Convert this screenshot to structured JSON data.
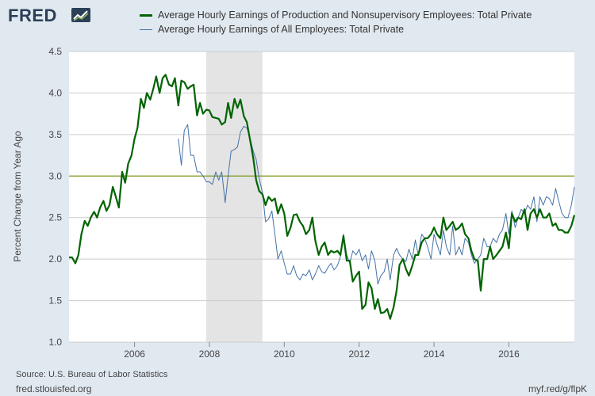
{
  "brand": {
    "logo_text": "FRED",
    "logo_icon": "line-graph-icon"
  },
  "colors": {
    "series1": "#006400",
    "series2": "#4572a7",
    "refline": "#7a9a1a",
    "recession": "#e4e4e4"
  },
  "chart_data": {
    "type": "line",
    "ylabel": "Percent Change from Year Ago",
    "xlabel": "",
    "ylim": [
      1.0,
      4.5
    ],
    "yticks": [
      "1.0",
      "1.5",
      "2.0",
      "2.5",
      "3.0",
      "3.5",
      "4.0",
      "4.5"
    ],
    "xlim": [
      2004.25,
      2017.75
    ],
    "xticks": [
      "2006",
      "2008",
      "2010",
      "2012",
      "2014",
      "2016"
    ],
    "grid": true,
    "legend_position": "top",
    "reference_line": 3.0,
    "recession": [
      "2007-12",
      "2009-06"
    ],
    "series": [
      {
        "name": "Average Hourly Earnings of Production and Nonsupervisory Employees: Total Private",
        "points": [
          [
            2004.25,
            2.02
          ],
          [
            2004.33,
            2.02
          ],
          [
            2004.42,
            1.95
          ],
          [
            2004.5,
            2.05
          ],
          [
            2004.58,
            2.3
          ],
          [
            2004.67,
            2.46
          ],
          [
            2004.75,
            2.4
          ],
          [
            2004.83,
            2.5
          ],
          [
            2004.92,
            2.57
          ],
          [
            2005.0,
            2.5
          ],
          [
            2005.08,
            2.62
          ],
          [
            2005.17,
            2.7
          ],
          [
            2005.25,
            2.58
          ],
          [
            2005.33,
            2.65
          ],
          [
            2005.42,
            2.87
          ],
          [
            2005.5,
            2.75
          ],
          [
            2005.58,
            2.62
          ],
          [
            2005.67,
            3.05
          ],
          [
            2005.75,
            2.92
          ],
          [
            2005.83,
            3.15
          ],
          [
            2005.92,
            3.25
          ],
          [
            2006.0,
            3.45
          ],
          [
            2006.08,
            3.58
          ],
          [
            2006.17,
            3.93
          ],
          [
            2006.25,
            3.82
          ],
          [
            2006.33,
            4.0
          ],
          [
            2006.42,
            3.92
          ],
          [
            2006.5,
            4.05
          ],
          [
            2006.58,
            4.2
          ],
          [
            2006.67,
            4.0
          ],
          [
            2006.75,
            4.18
          ],
          [
            2006.83,
            4.22
          ],
          [
            2006.92,
            4.1
          ],
          [
            2007.0,
            4.08
          ],
          [
            2007.08,
            4.18
          ],
          [
            2007.17,
            3.85
          ],
          [
            2007.25,
            4.15
          ],
          [
            2007.33,
            4.13
          ],
          [
            2007.42,
            4.05
          ],
          [
            2007.5,
            4.08
          ],
          [
            2007.58,
            4.1
          ],
          [
            2007.67,
            3.73
          ],
          [
            2007.75,
            3.88
          ],
          [
            2007.83,
            3.75
          ],
          [
            2007.92,
            3.8
          ],
          [
            2008.0,
            3.79
          ],
          [
            2008.08,
            3.71
          ],
          [
            2008.17,
            3.7
          ],
          [
            2008.25,
            3.69
          ],
          [
            2008.33,
            3.62
          ],
          [
            2008.42,
            3.65
          ],
          [
            2008.5,
            3.88
          ],
          [
            2008.58,
            3.7
          ],
          [
            2008.67,
            3.93
          ],
          [
            2008.75,
            3.82
          ],
          [
            2008.83,
            3.92
          ],
          [
            2008.92,
            3.72
          ],
          [
            2009.0,
            3.65
          ],
          [
            2009.08,
            3.45
          ],
          [
            2009.17,
            3.22
          ],
          [
            2009.25,
            2.95
          ],
          [
            2009.33,
            2.82
          ],
          [
            2009.42,
            2.78
          ],
          [
            2009.5,
            2.65
          ],
          [
            2009.58,
            2.75
          ],
          [
            2009.67,
            2.7
          ],
          [
            2009.75,
            2.73
          ],
          [
            2009.83,
            2.55
          ],
          [
            2009.92,
            2.66
          ],
          [
            2010.0,
            2.55
          ],
          [
            2010.08,
            2.28
          ],
          [
            2010.17,
            2.38
          ],
          [
            2010.25,
            2.53
          ],
          [
            2010.33,
            2.54
          ],
          [
            2010.42,
            2.45
          ],
          [
            2010.5,
            2.4
          ],
          [
            2010.58,
            2.3
          ],
          [
            2010.67,
            2.35
          ],
          [
            2010.75,
            2.5
          ],
          [
            2010.83,
            2.22
          ],
          [
            2010.92,
            2.05
          ],
          [
            2011.0,
            2.15
          ],
          [
            2011.08,
            2.2
          ],
          [
            2011.17,
            2.05
          ],
          [
            2011.25,
            2.1
          ],
          [
            2011.33,
            2.08
          ],
          [
            2011.42,
            2.1
          ],
          [
            2011.5,
            2.05
          ],
          [
            2011.58,
            2.28
          ],
          [
            2011.67,
            1.98
          ],
          [
            2011.75,
            1.98
          ],
          [
            2011.83,
            1.73
          ],
          [
            2011.92,
            1.8
          ],
          [
            2012.0,
            1.85
          ],
          [
            2012.08,
            1.4
          ],
          [
            2012.17,
            1.45
          ],
          [
            2012.25,
            1.72
          ],
          [
            2012.33,
            1.65
          ],
          [
            2012.42,
            1.4
          ],
          [
            2012.5,
            1.52
          ],
          [
            2012.58,
            1.35
          ],
          [
            2012.67,
            1.36
          ],
          [
            2012.75,
            1.4
          ],
          [
            2012.83,
            1.28
          ],
          [
            2012.92,
            1.42
          ],
          [
            2013.0,
            1.62
          ],
          [
            2013.08,
            1.93
          ],
          [
            2013.17,
            2.0
          ],
          [
            2013.25,
            1.88
          ],
          [
            2013.33,
            1.8
          ],
          [
            2013.42,
            1.92
          ],
          [
            2013.5,
            2.05
          ],
          [
            2013.58,
            2.05
          ],
          [
            2013.67,
            2.2
          ],
          [
            2013.75,
            2.25
          ],
          [
            2013.83,
            2.25
          ],
          [
            2013.92,
            2.3
          ],
          [
            2014.0,
            2.38
          ],
          [
            2014.08,
            2.3
          ],
          [
            2014.17,
            2.25
          ],
          [
            2014.25,
            2.5
          ],
          [
            2014.33,
            2.35
          ],
          [
            2014.42,
            2.4
          ],
          [
            2014.5,
            2.45
          ],
          [
            2014.58,
            2.35
          ],
          [
            2014.67,
            2.38
          ],
          [
            2014.75,
            2.43
          ],
          [
            2014.83,
            2.3
          ],
          [
            2014.92,
            2.25
          ],
          [
            2015.0,
            2.1
          ],
          [
            2015.08,
            2.0
          ],
          [
            2015.17,
            1.98
          ],
          [
            2015.25,
            1.62
          ],
          [
            2015.33,
            2.0
          ],
          [
            2015.42,
            2.0
          ],
          [
            2015.5,
            2.15
          ],
          [
            2015.58,
            2.0
          ],
          [
            2015.67,
            2.05
          ],
          [
            2015.75,
            2.1
          ],
          [
            2015.83,
            2.15
          ],
          [
            2015.92,
            2.32
          ],
          [
            2016.0,
            2.13
          ],
          [
            2016.08,
            2.55
          ],
          [
            2016.17,
            2.45
          ],
          [
            2016.25,
            2.5
          ],
          [
            2016.33,
            2.48
          ],
          [
            2016.42,
            2.6
          ],
          [
            2016.5,
            2.35
          ],
          [
            2016.58,
            2.55
          ],
          [
            2016.67,
            2.6
          ],
          [
            2016.75,
            2.5
          ],
          [
            2016.83,
            2.6
          ],
          [
            2016.92,
            2.5
          ],
          [
            2017.0,
            2.5
          ],
          [
            2017.08,
            2.55
          ],
          [
            2017.17,
            2.4
          ],
          [
            2017.25,
            2.43
          ],
          [
            2017.33,
            2.35
          ],
          [
            2017.42,
            2.35
          ],
          [
            2017.5,
            2.32
          ],
          [
            2017.58,
            2.32
          ],
          [
            2017.67,
            2.4
          ],
          [
            2017.75,
            2.53
          ]
        ]
      },
      {
        "name": "Average Hourly Earnings of All Employees: Total Private",
        "points": [
          [
            2007.17,
            3.45
          ],
          [
            2007.25,
            3.13
          ],
          [
            2007.33,
            3.55
          ],
          [
            2007.42,
            3.62
          ],
          [
            2007.5,
            3.25
          ],
          [
            2007.58,
            3.25
          ],
          [
            2007.67,
            3.05
          ],
          [
            2007.75,
            3.05
          ],
          [
            2007.83,
            3.0
          ],
          [
            2007.92,
            2.93
          ],
          [
            2008.0,
            2.93
          ],
          [
            2008.08,
            2.9
          ],
          [
            2008.17,
            3.05
          ],
          [
            2008.25,
            2.95
          ],
          [
            2008.33,
            3.05
          ],
          [
            2008.42,
            2.68
          ],
          [
            2008.5,
            3.0
          ],
          [
            2008.58,
            3.3
          ],
          [
            2008.67,
            3.32
          ],
          [
            2008.75,
            3.35
          ],
          [
            2008.83,
            3.53
          ],
          [
            2008.92,
            3.6
          ],
          [
            2009.0,
            3.58
          ],
          [
            2009.08,
            3.47
          ],
          [
            2009.17,
            3.3
          ],
          [
            2009.25,
            3.2
          ],
          [
            2009.33,
            2.97
          ],
          [
            2009.42,
            2.8
          ],
          [
            2009.5,
            2.45
          ],
          [
            2009.58,
            2.48
          ],
          [
            2009.67,
            2.58
          ],
          [
            2009.75,
            2.3
          ],
          [
            2009.83,
            2.0
          ],
          [
            2009.92,
            2.1
          ],
          [
            2010.0,
            1.95
          ],
          [
            2010.08,
            1.82
          ],
          [
            2010.17,
            1.82
          ],
          [
            2010.25,
            1.92
          ],
          [
            2010.33,
            1.8
          ],
          [
            2010.42,
            1.75
          ],
          [
            2010.5,
            1.82
          ],
          [
            2010.58,
            1.8
          ],
          [
            2010.67,
            1.87
          ],
          [
            2010.75,
            1.75
          ],
          [
            2010.83,
            1.82
          ],
          [
            2010.92,
            1.92
          ],
          [
            2011.0,
            1.85
          ],
          [
            2011.08,
            1.83
          ],
          [
            2011.17,
            1.9
          ],
          [
            2011.25,
            1.95
          ],
          [
            2011.33,
            1.87
          ],
          [
            2011.42,
            1.92
          ],
          [
            2011.5,
            2.03
          ],
          [
            2011.58,
            2.3
          ],
          [
            2011.67,
            2.05
          ],
          [
            2011.75,
            1.95
          ],
          [
            2011.83,
            2.1
          ],
          [
            2011.92,
            2.05
          ],
          [
            2012.0,
            2.12
          ],
          [
            2012.08,
            1.98
          ],
          [
            2012.17,
            2.05
          ],
          [
            2012.25,
            1.88
          ],
          [
            2012.33,
            2.1
          ],
          [
            2012.42,
            1.98
          ],
          [
            2012.5,
            1.7
          ],
          [
            2012.58,
            1.8
          ],
          [
            2012.67,
            1.85
          ],
          [
            2012.75,
            2.0
          ],
          [
            2012.83,
            1.75
          ],
          [
            2012.92,
            2.05
          ],
          [
            2013.0,
            2.13
          ],
          [
            2013.08,
            2.05
          ],
          [
            2013.17,
            2.0
          ],
          [
            2013.25,
            1.97
          ],
          [
            2013.33,
            2.12
          ],
          [
            2013.42,
            2.0
          ],
          [
            2013.5,
            2.23
          ],
          [
            2013.58,
            2.05
          ],
          [
            2013.67,
            2.3
          ],
          [
            2013.75,
            2.25
          ],
          [
            2013.83,
            2.15
          ],
          [
            2013.92,
            2.0
          ],
          [
            2014.0,
            2.3
          ],
          [
            2014.08,
            2.18
          ],
          [
            2014.17,
            2.05
          ],
          [
            2014.25,
            2.35
          ],
          [
            2014.33,
            2.15
          ],
          [
            2014.42,
            2.05
          ],
          [
            2014.5,
            2.4
          ],
          [
            2014.58,
            2.05
          ],
          [
            2014.67,
            2.15
          ],
          [
            2014.75,
            2.05
          ],
          [
            2014.83,
            2.25
          ],
          [
            2014.92,
            2.2
          ],
          [
            2015.0,
            2.05
          ],
          [
            2015.08,
            1.95
          ],
          [
            2015.17,
            2.0
          ],
          [
            2015.25,
            2.05
          ],
          [
            2015.33,
            2.25
          ],
          [
            2015.42,
            2.15
          ],
          [
            2015.5,
            2.15
          ],
          [
            2015.58,
            2.25
          ],
          [
            2015.67,
            2.2
          ],
          [
            2015.75,
            2.3
          ],
          [
            2015.83,
            2.35
          ],
          [
            2015.92,
            2.55
          ],
          [
            2016.0,
            2.3
          ],
          [
            2016.08,
            2.58
          ],
          [
            2016.17,
            2.38
          ],
          [
            2016.25,
            2.5
          ],
          [
            2016.33,
            2.6
          ],
          [
            2016.42,
            2.55
          ],
          [
            2016.5,
            2.65
          ],
          [
            2016.58,
            2.6
          ],
          [
            2016.67,
            2.75
          ],
          [
            2016.75,
            2.45
          ],
          [
            2016.83,
            2.75
          ],
          [
            2016.92,
            2.65
          ],
          [
            2017.0,
            2.75
          ],
          [
            2017.08,
            2.73
          ],
          [
            2017.17,
            2.65
          ],
          [
            2017.25,
            2.85
          ],
          [
            2017.33,
            2.7
          ],
          [
            2017.42,
            2.55
          ],
          [
            2017.5,
            2.5
          ],
          [
            2017.58,
            2.5
          ],
          [
            2017.67,
            2.65
          ],
          [
            2017.75,
            2.87
          ]
        ]
      }
    ]
  },
  "footer": {
    "source": "Source: U.S. Bureau of Labor Statistics",
    "site": "fred.stlouisfed.org",
    "short_link": "myf.red/g/flpK"
  }
}
